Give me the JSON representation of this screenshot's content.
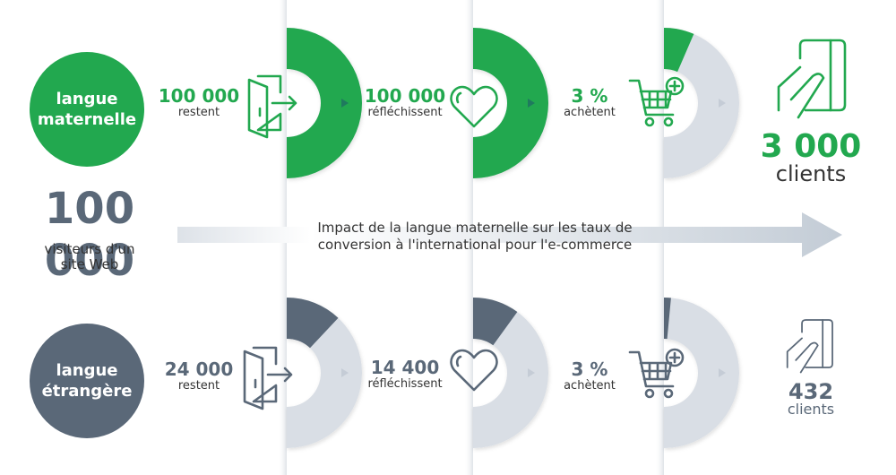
{
  "colors": {
    "green": "#22a84f",
    "slate": "#5a6878",
    "light": "#d9dee5",
    "arrow_dark": "#1f7a5e",
    "arrow_light": "#c5ccd6"
  },
  "visitors": {
    "value": "100 000",
    "label_line1": "visiteurs d'un",
    "label_line2": "site Web"
  },
  "title": {
    "line1": "Impact de la langue maternelle sur les taux de",
    "line2": "conversion à l'international pour l'e-commerce"
  },
  "rows": [
    {
      "language_line1": "langue",
      "language_line2": "maternelle",
      "color": "#22a84f",
      "steps": [
        {
          "value": "100 000",
          "label": "restent",
          "icon": "door-exit-icon",
          "fill_fraction": 1.0
        },
        {
          "value": "100 000",
          "label": "réfléchissent",
          "icon": "heart-icon",
          "fill_fraction": 1.0
        },
        {
          "value": "3 %",
          "label": "achètent",
          "icon": "cart-add-icon",
          "fill_fraction": 0.13
        }
      ],
      "result": {
        "value": "3 000",
        "label": "clients",
        "icon": "hand-card-icon"
      }
    },
    {
      "language_line1": "langue",
      "language_line2": "étrangère",
      "color": "#5a6878",
      "steps": [
        {
          "value": "24 000",
          "label": "restent",
          "icon": "door-exit-icon",
          "fill_fraction": 0.24
        },
        {
          "value": "14 400",
          "label": "réfléchissent",
          "icon": "heart-icon",
          "fill_fraction": 0.2
        },
        {
          "value": "3 %",
          "label": "achètent",
          "icon": "cart-add-icon",
          "fill_fraction": 0.03
        }
      ],
      "result": {
        "value": "432",
        "label": "clients",
        "icon": "hand-card-icon"
      }
    }
  ]
}
